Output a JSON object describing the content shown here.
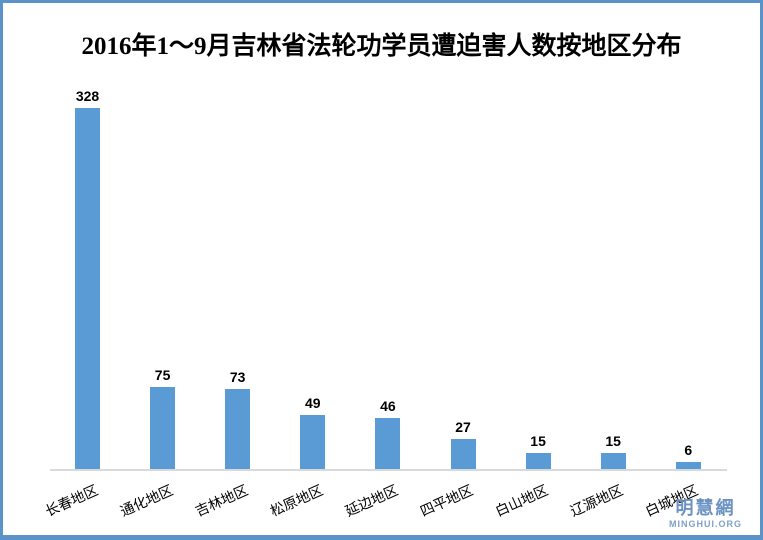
{
  "frame": {
    "border_color": "#5b93c8",
    "background_color": "#ffffff"
  },
  "chart_data": {
    "type": "bar",
    "title": "2016年1～9月吉林省法轮功学员遭迫害人数按地区分布",
    "categories": [
      "长春地区",
      "通化地区",
      "吉林地区",
      "松原地区",
      "延边地区",
      "四平地区",
      "白山地区",
      "辽源地区",
      "白城地区"
    ],
    "values": [
      328,
      75,
      73,
      49,
      46,
      27,
      15,
      15,
      6
    ],
    "xlabel": "",
    "ylabel": "",
    "ylim": [
      0,
      350
    ],
    "grid": false,
    "legend": false,
    "data_labels_shown": true,
    "category_label_rotation_deg": -24,
    "bar_color": "#5b9bd5",
    "title_color": "#000000",
    "value_label_color": "#000000",
    "category_label_color": "#000000",
    "axis_line_color": "#d9d9d9"
  },
  "watermark": {
    "name": "明慧網",
    "site": "MINGHUI.ORG",
    "name_color": "#6b92c3",
    "site_color": "#7ea0c9"
  }
}
